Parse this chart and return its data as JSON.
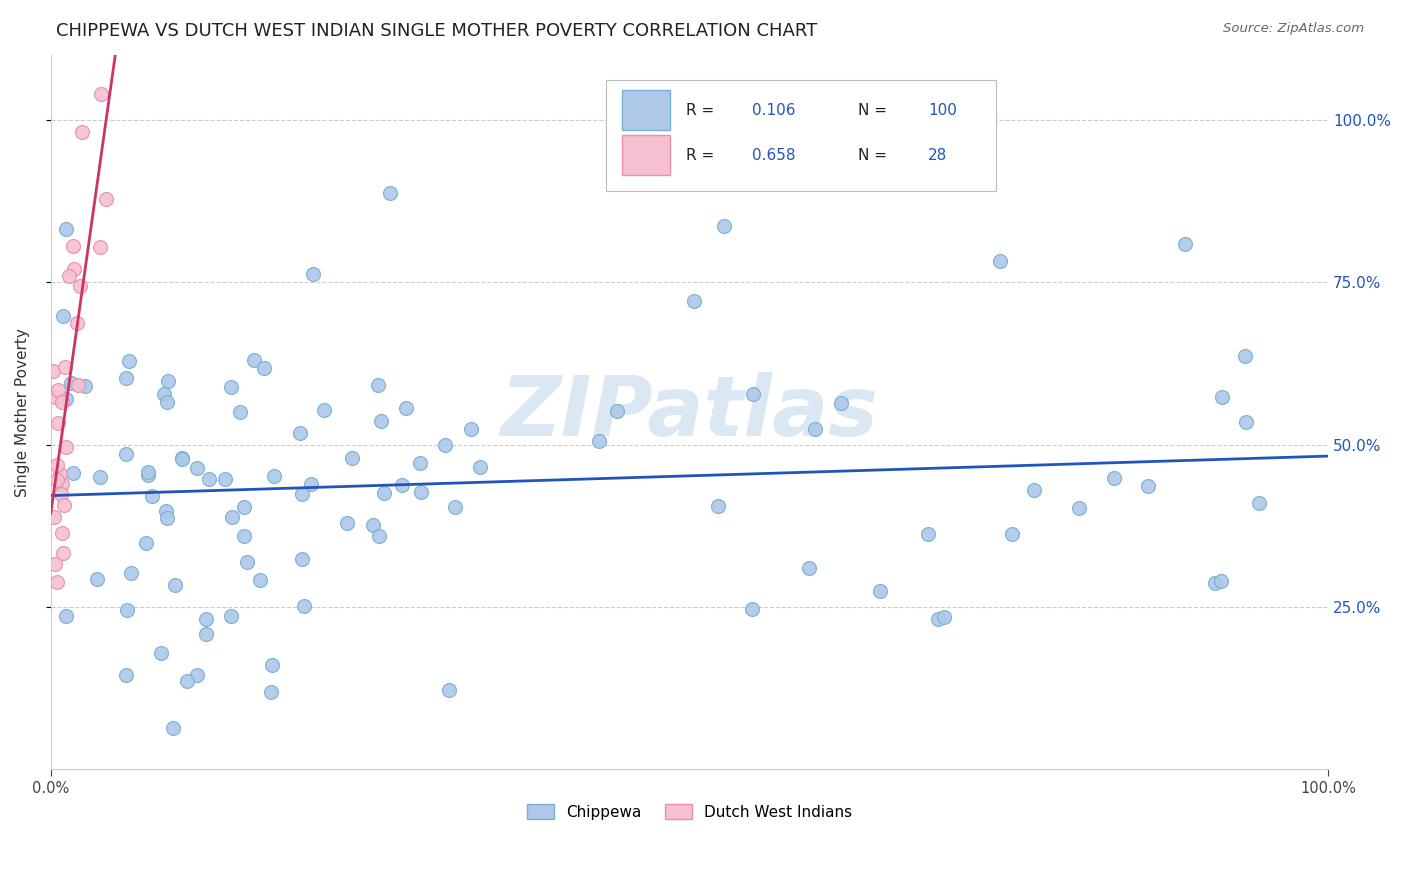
{
  "title": "CHIPPEWA VS DUTCH WEST INDIAN SINGLE MOTHER POVERTY CORRELATION CHART",
  "source": "Source: ZipAtlas.com",
  "ylabel": "Single Mother Poverty",
  "ytick_labels": [
    "25.0%",
    "50.0%",
    "75.0%",
    "100.0%"
  ],
  "ytick_values": [
    0.25,
    0.5,
    0.75,
    1.0
  ],
  "xlim": [
    0.0,
    1.0
  ],
  "ylim": [
    0.0,
    1.1
  ],
  "chippewa_color": "#adc8e8",
  "chippewa_edge_color": "#7aafd4",
  "dutch_color": "#f5c0d0",
  "dutch_edge_color": "#e890a8",
  "trend_chippewa_color": "#2255bb",
  "trend_dutch_color": "#cc3366",
  "legend_label_chippewa": "Chippewa",
  "legend_label_dutch": "Dutch West Indians",
  "R_chippewa": 0.106,
  "N_chippewa": 100,
  "R_dutch": 0.658,
  "N_dutch": 28,
  "watermark": "ZIPatlas",
  "marker_size": 100,
  "background_color": "#ffffff",
  "grid_color": "#cccccc"
}
